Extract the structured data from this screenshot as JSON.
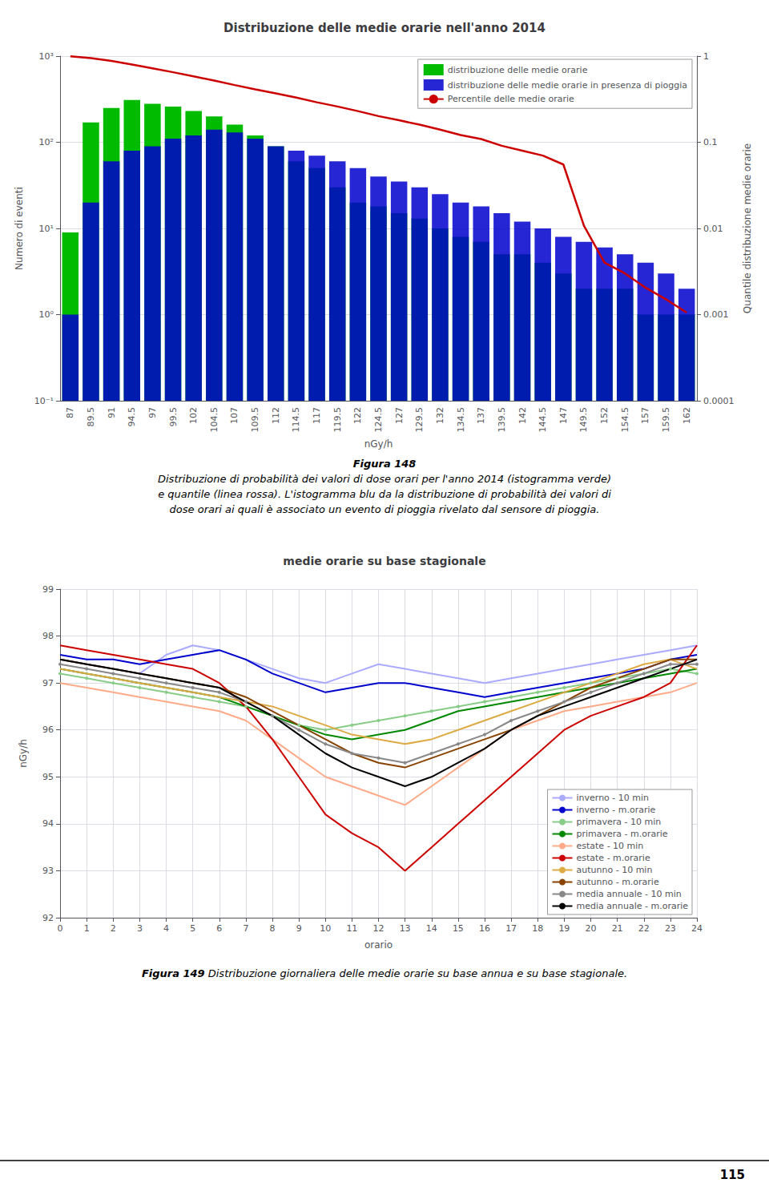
{
  "chart_data": [
    {
      "type": "bar",
      "title": "Distribuzione delle medie orarie nell'anno 2014",
      "xlabel": "nGy/h",
      "ylabel": "Numero di eventi",
      "y2label": "Quantile distribuzione medie orarie",
      "categories": [
        "87",
        "89.5",
        "91",
        "94.5",
        "97",
        "99.5",
        "102",
        "104.5",
        "107",
        "109.5",
        "112",
        "114.5",
        "117",
        "119.5",
        "122",
        "124.5",
        "127",
        "129.5",
        "132",
        "134.5",
        "137",
        "139.5",
        "142",
        "144.5",
        "147",
        "149.5",
        "152",
        "154.5",
        "157",
        "159.5",
        "162"
      ],
      "series": [
        {
          "name": "distribuzione delle medie orarie",
          "type": "bar",
          "color": "#00bb00",
          "values": [
            9,
            170,
            250,
            310,
            280,
            260,
            230,
            200,
            160,
            120,
            90,
            60,
            50,
            30,
            20,
            18,
            15,
            13,
            10,
            8,
            7,
            5,
            5,
            4,
            3,
            2,
            2,
            2,
            1,
            1,
            1
          ]
        },
        {
          "name": "distribuzione delle medie orarie in presenza di pioggia",
          "type": "bar",
          "color": "#0000cc",
          "values": [
            1,
            20,
            60,
            80,
            90,
            110,
            120,
            140,
            130,
            110,
            90,
            80,
            70,
            60,
            50,
            40,
            35,
            30,
            25,
            20,
            18,
            15,
            12,
            10,
            8,
            7,
            6,
            5,
            4,
            3,
            2
          ]
        },
        {
          "name": "Percentile delle medie orarie",
          "type": "line",
          "color": "#cc0000",
          "axis": "y2",
          "values": [
            0.99463,
            0.94784,
            0.87892,
            0.8,
            0.72107,
            0.65001,
            0.58107,
            0.52001,
            0.46107,
            0.41107,
            0.37,
            0.33,
            0.29107,
            0.26,
            0.23,
            0.20107,
            0.18,
            0.16,
            0.14,
            0.12107,
            0.10894,
            0.09107,
            0.08,
            0.06999,
            0.0552,
            0.010765,
            0.0040143,
            0.003,
            0.0020535,
            0.0015,
            0.0010536
          ]
        }
      ],
      "ylim": [
        0.1,
        1000
      ],
      "yticks": [
        {
          "value": 0.1,
          "label": "10⁻¹"
        },
        {
          "value": 1,
          "label": "10⁰"
        },
        {
          "value": 10,
          "label": "10¹"
        },
        {
          "value": 100,
          "label": "10²"
        },
        {
          "value": 1000,
          "label": "10³"
        }
      ],
      "y2lim": [
        0.0001,
        1
      ],
      "y2ticks": [
        0.0001,
        0.001,
        0.01,
        0.1,
        1
      ],
      "log": true,
      "grid": true,
      "legend": "upper right",
      "annotations": [
        "Figura 148",
        "Distribuzione di probabilità dei valori di dose orari per l'anno 2014 (istogramma verde)",
        "e quantile (linea rossa). L'istogramma blu da la distribuzione di probabilità dei valori di",
        "dose orari ai quali è associato un evento di pioggia rivelato dal sensore di pioggia."
      ]
    },
    {
      "type": "line",
      "title": "medie orarie su base stagionale",
      "xlabel": "orario",
      "ylabel": "nGy/h",
      "x": [
        0,
        1,
        2,
        3,
        4,
        5,
        6,
        7,
        8,
        9,
        10,
        11,
        12,
        13,
        14,
        15,
        16,
        17,
        18,
        19,
        20,
        21,
        22,
        23,
        24
      ],
      "series": [
        {
          "name": "inverno - 10 min",
          "color": "#aaaaff",
          "values": [
            97.5,
            97.4,
            97.3,
            97.2,
            97.6,
            97.8,
            97.7,
            97.5,
            97.3,
            97.1,
            97.0,
            97.2,
            97.4,
            97.3,
            97.2,
            97.1,
            97.0,
            97.1,
            97.2,
            97.3,
            97.4,
            97.5,
            97.6,
            97.7,
            97.8
          ]
        },
        {
          "name": "inverno - m.orarie",
          "color": "#0000cc",
          "values": [
            97.6,
            97.5,
            97.5,
            97.4,
            97.5,
            97.6,
            97.7,
            97.5,
            97.2,
            97.0,
            96.8,
            96.9,
            97.0,
            97.0,
            96.9,
            96.8,
            96.7,
            96.8,
            96.9,
            97.0,
            97.1,
            97.2,
            97.3,
            97.5,
            97.6
          ]
        },
        {
          "name": "primavera - 10 min",
          "color": "#88cc88",
          "marker": "circle",
          "values": [
            97.2,
            97.1,
            97.0,
            96.9,
            96.8,
            96.7,
            96.6,
            96.5,
            96.3,
            96.1,
            96.0,
            96.1,
            96.2,
            96.3,
            96.4,
            96.5,
            96.6,
            96.7,
            96.8,
            96.9,
            97.0,
            97.1,
            97.2,
            97.3,
            97.2
          ]
        },
        {
          "name": "primavera - m.orarie",
          "color": "#008800",
          "values": [
            97.3,
            97.2,
            97.1,
            97.0,
            96.9,
            96.8,
            96.7,
            96.5,
            96.3,
            96.1,
            95.9,
            95.8,
            95.9,
            96.0,
            96.2,
            96.4,
            96.5,
            96.6,
            96.7,
            96.8,
            96.9,
            97.0,
            97.1,
            97.2,
            97.3
          ]
        },
        {
          "name": "estate - 10 min",
          "color": "#ffaa88",
          "values": [
            97.0,
            96.9,
            96.8,
            96.7,
            96.6,
            96.5,
            96.4,
            96.2,
            95.8,
            95.4,
            95.0,
            94.8,
            94.6,
            94.4,
            94.8,
            95.2,
            95.6,
            96.0,
            96.2,
            96.4,
            96.5,
            96.6,
            96.7,
            96.8,
            97.0
          ]
        },
        {
          "name": "estate - m.orarie",
          "color": "#cc0000",
          "values": [
            97.8,
            97.7,
            97.6,
            97.5,
            97.4,
            97.3,
            97.0,
            96.5,
            95.8,
            95.0,
            94.2,
            93.8,
            93.5,
            93.0,
            93.5,
            94.0,
            94.5,
            95.0,
            95.5,
            96.0,
            96.3,
            96.5,
            96.7,
            97.0,
            97.8
          ]
        },
        {
          "name": "autunno - 10 min",
          "color": "#ddaa44",
          "values": [
            97.3,
            97.2,
            97.1,
            97.0,
            96.9,
            96.8,
            96.7,
            96.6,
            96.5,
            96.3,
            96.1,
            95.9,
            95.8,
            95.7,
            95.8,
            96.0,
            96.2,
            96.4,
            96.6,
            96.8,
            97.0,
            97.2,
            97.4,
            97.5,
            97.3
          ]
        },
        {
          "name": "autunno - m.orarie",
          "color": "#884400",
          "values": [
            97.5,
            97.4,
            97.3,
            97.2,
            97.1,
            97.0,
            96.9,
            96.7,
            96.4,
            96.1,
            95.8,
            95.5,
            95.3,
            95.2,
            95.4,
            95.6,
            95.8,
            96.0,
            96.3,
            96.6,
            96.9,
            97.1,
            97.3,
            97.5,
            97.5
          ]
        },
        {
          "name": "media annuale - 10 min",
          "color": "#888888",
          "marker": "circle",
          "values": [
            97.4,
            97.3,
            97.2,
            97.1,
            97.0,
            96.9,
            96.8,
            96.6,
            96.3,
            96.0,
            95.7,
            95.5,
            95.4,
            95.3,
            95.5,
            95.7,
            95.9,
            96.2,
            96.4,
            96.6,
            96.8,
            97.0,
            97.2,
            97.4,
            97.4
          ]
        },
        {
          "name": "media annuale - m.orarie",
          "color": "#000000",
          "values": [
            97.5,
            97.4,
            97.3,
            97.2,
            97.1,
            97.0,
            96.9,
            96.6,
            96.3,
            95.9,
            95.5,
            95.2,
            95.0,
            94.8,
            95.0,
            95.3,
            95.6,
            96.0,
            96.3,
            96.5,
            96.7,
            96.9,
            97.1,
            97.3,
            97.5
          ]
        }
      ],
      "xlim": [
        0,
        24
      ],
      "xticks": [
        0,
        1,
        2,
        3,
        4,
        5,
        6,
        7,
        8,
        9,
        10,
        11,
        12,
        13,
        14,
        15,
        16,
        17,
        18,
        19,
        20,
        21,
        22,
        23,
        24
      ],
      "ylim": [
        92,
        99
      ],
      "yticks": [
        92,
        93,
        94,
        95,
        96,
        97,
        98,
        99
      ],
      "grid": true,
      "legend": "lower right",
      "annotations": [
        "Figura 149",
        "Distribuzione giornaliera delle medie orarie su base annua e su base stagionale.",
        "115"
      ]
    }
  ]
}
